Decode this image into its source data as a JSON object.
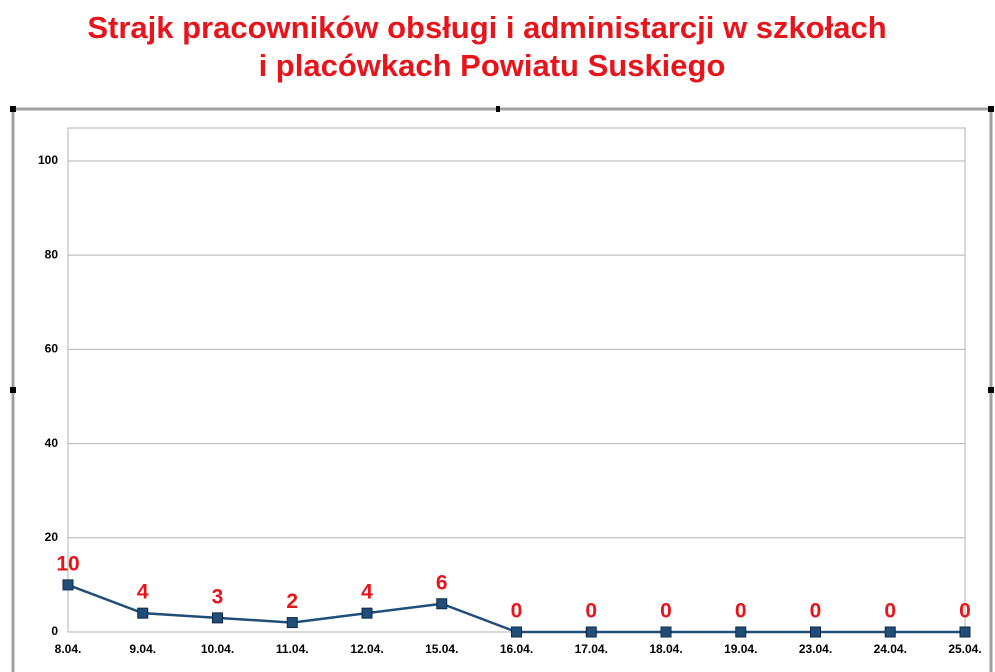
{
  "chart_data": {
    "type": "line",
    "title": [
      "Strajk pracowników obsługi i administarcji w szkołach",
      "i placówkach Powiatu Suskiego"
    ],
    "categories": [
      "8.04.",
      "9.04.",
      "10.04.",
      "11.04.",
      "12.04.",
      "15.04.",
      "16.04.",
      "17.04.",
      "18.04.",
      "19.04.",
      "23.04.",
      "24.04.",
      "25.04."
    ],
    "series": [
      {
        "name": "Strajk",
        "color": "#1f4e79",
        "values": [
          10,
          4,
          3,
          2,
          4,
          6,
          0,
          0,
          0,
          0,
          0,
          0,
          0
        ]
      }
    ],
    "ylim": [
      0,
      107
    ],
    "yticks": [
      0,
      20,
      40,
      60,
      80,
      100
    ],
    "grid": true
  }
}
